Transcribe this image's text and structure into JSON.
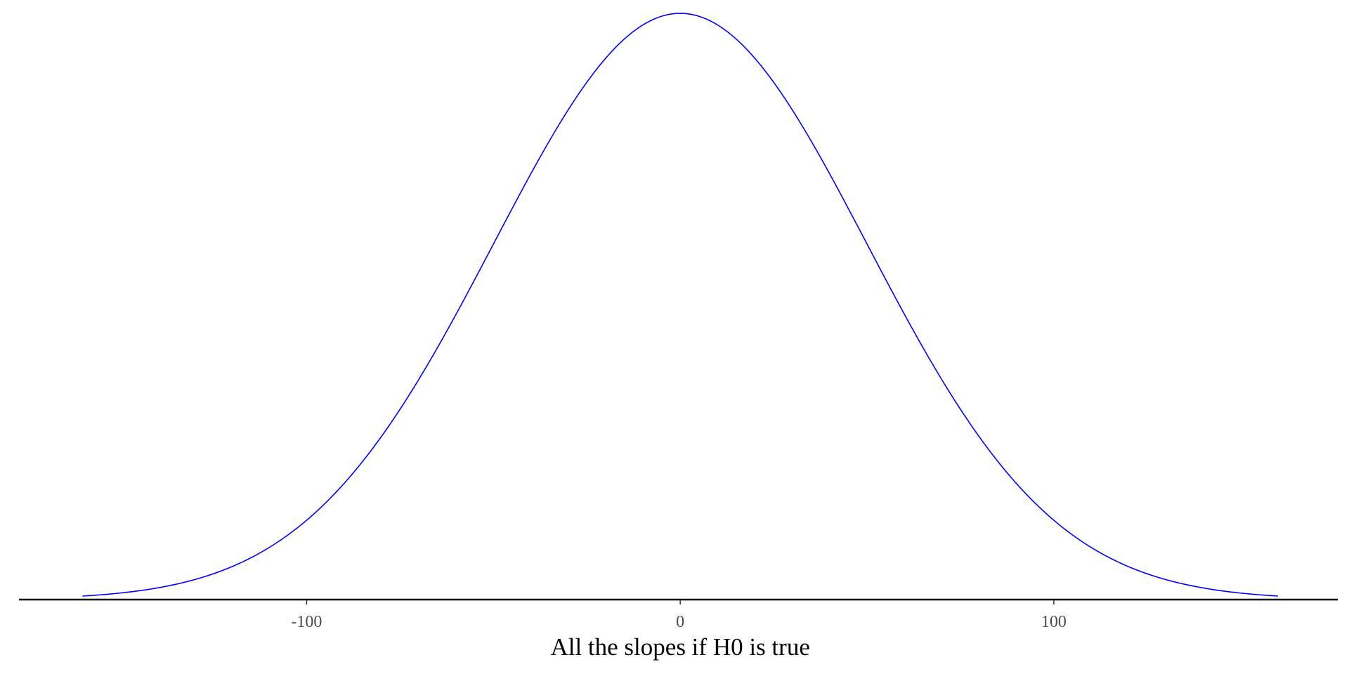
{
  "chart_data": {
    "type": "line",
    "title": "",
    "xlabel": "All the slopes if H0 is true",
    "ylabel": "",
    "xlim": [
      -177,
      176
    ],
    "ylim": [
      0,
      1
    ],
    "x_ticks": [
      {
        "value": -100,
        "label": "-100"
      },
      {
        "value": 0,
        "label": "0"
      },
      {
        "value": 100,
        "label": "100"
      }
    ],
    "y_axis_shown": false,
    "grid": false,
    "legend": "none",
    "series": [
      {
        "kind": "normal density curve",
        "color": "#0000ff",
        "mean": 0,
        "sd": 50,
        "x_range": [
          -160,
          160
        ]
      }
    ],
    "colors": {
      "curve": "#0000ff",
      "axis": "#000000",
      "tick_text": "#4d4d4d",
      "background": "#ffffff"
    }
  }
}
